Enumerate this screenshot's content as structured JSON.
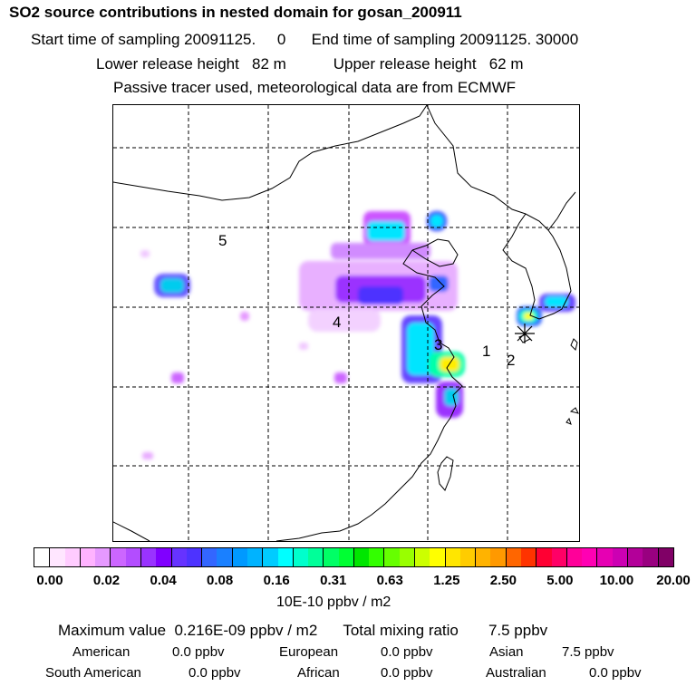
{
  "header": {
    "title": "SO2 source contributions in nested domain for gosan_200911",
    "sampling_times": "Start time of sampling 20091125.     0      End time of sampling 20091125. 30000",
    "release_heights": "Lower release height   82 m           Upper release height   62 m",
    "tracer_note": "Passive tracer used, meteorological data are from ECMWF"
  },
  "map": {
    "region_labels": [
      "5",
      "4",
      "3",
      "1",
      "2"
    ],
    "receptor_marker": "asterisk-receptor-icon"
  },
  "colorbar": {
    "tick_labels": [
      "0.00",
      "0.02",
      "0.04",
      "0.08",
      "0.16",
      "0.31",
      "0.63",
      "1.25",
      "2.50",
      "5.00",
      "10.00",
      "20.00"
    ],
    "colors": [
      "#ffffff",
      "#ffe6ff",
      "#ffccff",
      "#ffb3ff",
      "#e699ff",
      "#cc66ff",
      "#b34dff",
      "#9933ff",
      "#8000ff",
      "#6633ff",
      "#4d33ff",
      "#3366ff",
      "#1a80ff",
      "#0099ff",
      "#00b3ff",
      "#00ccff",
      "#00ffff",
      "#00ffcc",
      "#00ff99",
      "#00ff66",
      "#00ff33",
      "#00e600",
      "#33ff00",
      "#66ff00",
      "#99ff00",
      "#ccff00",
      "#ffff00",
      "#ffe600",
      "#ffcc00",
      "#ffb300",
      "#ff9900",
      "#ff6600",
      "#ff3300",
      "#ff0033",
      "#ff0066",
      "#ff0099",
      "#ff00b3",
      "#e600b3",
      "#cc00b3",
      "#b30099",
      "#990080",
      "#800066"
    ],
    "units": "10E-10 ppbv / m2"
  },
  "summary": {
    "maximum_line": "Maximum value  0.216E-09 ppbv / m2      Total mixing ratio       7.5 ppbv",
    "regions": [
      {
        "name": "American",
        "value": "0.0 ppbv"
      },
      {
        "name": "European",
        "value": "0.0 ppbv"
      },
      {
        "name": "Asian",
        "value": "7.5 ppbv"
      },
      {
        "name": "South American",
        "value": "0.0 ppbv"
      },
      {
        "name": "African",
        "value": "0.0 ppbv"
      },
      {
        "name": "Australian",
        "value": "0.0 ppbv"
      }
    ]
  }
}
